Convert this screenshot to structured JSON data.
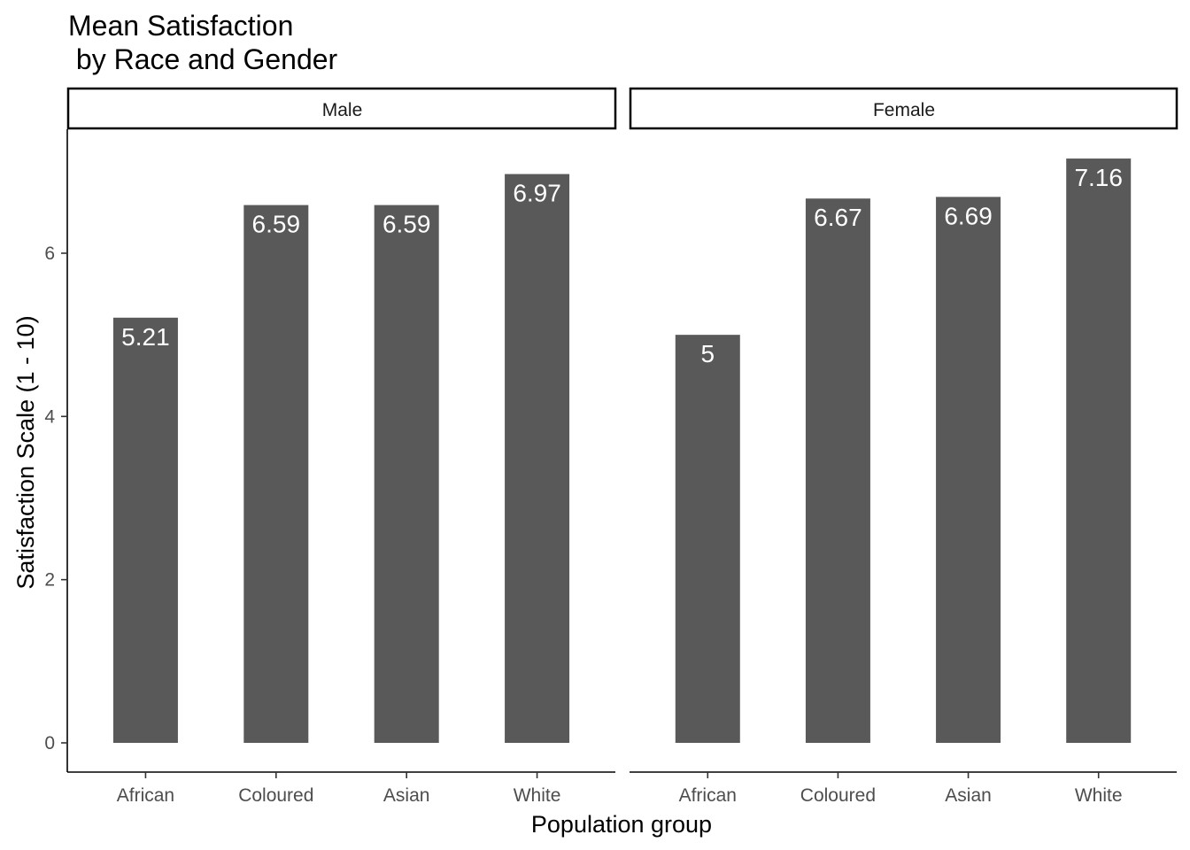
{
  "chart_data": {
    "type": "bar",
    "title_lines": [
      "Mean Satisfaction",
      " by Race and Gender"
    ],
    "xlabel": "Population group",
    "ylabel": "Satisfaction Scale (1 - 10)",
    "categories": [
      "African",
      "Coloured",
      "Asian",
      "White"
    ],
    "yticks": [
      "0",
      "2",
      "4",
      "6"
    ],
    "ylim": [
      0,
      7.5
    ],
    "bar_color": "#595959",
    "label_color": "#ffffff",
    "panels": [
      {
        "name": "Male",
        "values": [
          5.21,
          6.59,
          6.59,
          6.97
        ],
        "labels": [
          "5.21",
          "6.59",
          "6.59",
          "6.97"
        ]
      },
      {
        "name": "Female",
        "values": [
          5,
          6.67,
          6.69,
          7.16
        ],
        "labels": [
          "5",
          "6.67",
          "6.69",
          "7.16"
        ]
      }
    ],
    "grid": false,
    "legend": "none"
  }
}
